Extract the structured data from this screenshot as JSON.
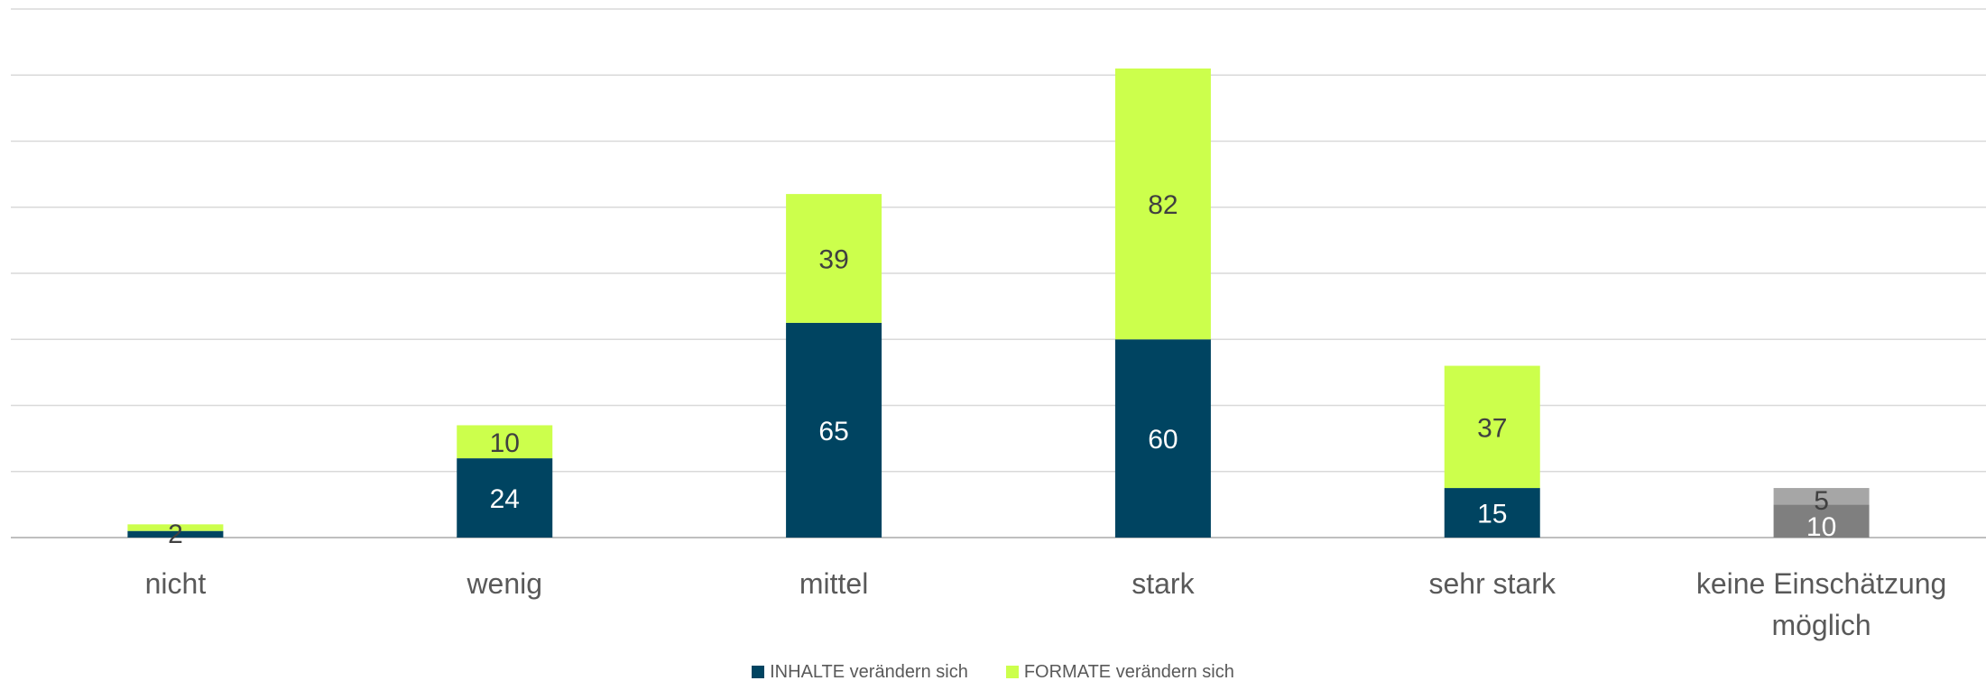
{
  "chart_data": {
    "type": "bar",
    "stacked": true,
    "categories": [
      "nicht",
      "wenig",
      "mittel",
      "stark",
      "sehr stark",
      "keine Einschätzung möglich"
    ],
    "series": [
      {
        "name": "INHALTE verändern sich",
        "color": "#004461",
        "values": [
          2,
          24,
          65,
          60,
          15,
          null
        ]
      },
      {
        "name": "FORMATE verändern sich",
        "color": "#ccff4c",
        "values": [
          2,
          10,
          39,
          82,
          37,
          null
        ]
      }
    ],
    "extra_category_values": {
      "category": "keine Einschätzung möglich",
      "lower": {
        "value": 10,
        "color": "#7f7f7f"
      },
      "upper": {
        "value": 5,
        "color": "#a6a6a6"
      }
    },
    "data_labels": [
      [
        "2",
        "24",
        "65",
        "60",
        "15",
        "10"
      ],
      [
        "",
        "10",
        "39",
        "82",
        "37",
        "5"
      ]
    ],
    "ylim": [
      0,
      160
    ],
    "gridlines": true,
    "y_axis_labels_visible": false,
    "legend_position": "bottom"
  }
}
